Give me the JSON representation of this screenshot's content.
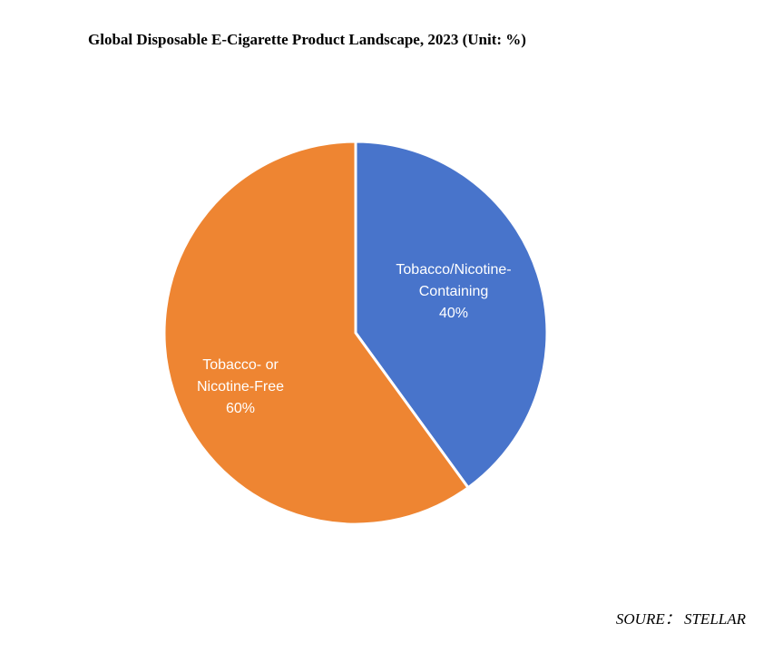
{
  "chart_data": {
    "type": "pie",
    "title": "Global Disposable E-Cigarette Product Landscape, 2023 (Unit: %)",
    "slices": [
      {
        "label_lines": [
          "Tobacco/Nicotine-",
          "Containing",
          "40%"
        ],
        "value": 40,
        "color": "#4874CB"
      },
      {
        "label_lines": [
          "Tobacco- or",
          "Nicotine-Free",
          "60%"
        ],
        "value": 60,
        "color": "#EE8532"
      }
    ]
  },
  "source": "SOURE： STELLAR"
}
